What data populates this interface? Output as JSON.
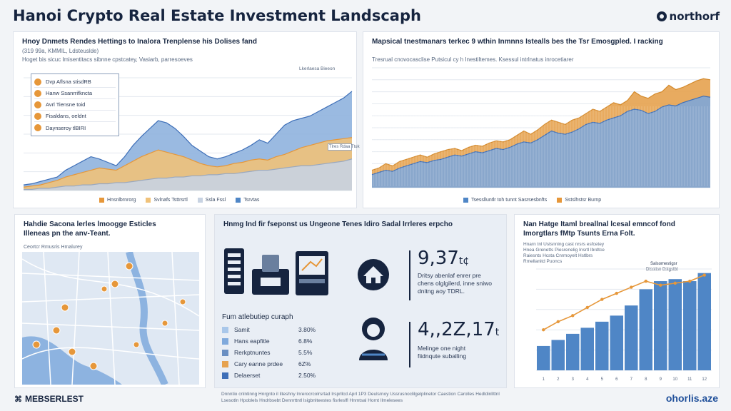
{
  "header": {
    "title": "Hanoi Crypto Real Estate Investment Landscaph",
    "brand": "northorf"
  },
  "panel1": {
    "title": "Hnoy Dnmets Rendes Hettings to Inalora Trenplense his Dolises fand",
    "subtitle": "(319 99a, KMMIL, Ldsteuslde)",
    "note": "Hoget bis sicuc lmisentitacs sibnne cpstcatey, Vasiarb, parresoeves",
    "tag": "Lkerlaesa Bieeon",
    "legend": [
      "Dvp Aflsna stisdRB",
      "Hanw Ssanrrifkncta",
      "Avrl Tiensne toid",
      "Fisaldans, oeldnt",
      "Daynseroy tlBIRI"
    ],
    "bottom_legend": [
      "Hnsnlbrnrorg",
      "Svlnafs Tsttrsrtl",
      "Ssla Fssl",
      "Tsrvtas"
    ],
    "box_note": "Tlres Rdaa Ttuk"
  },
  "panel2": {
    "title": "Mapsical tnestmanars terkec 9 wthin Inmnns Istealls bes the Tsr Emosgpled. I racking",
    "subtitle": "Tresrual cnovocasclise Putsicul cy h Inestiltemes. Ksessul intrlnatus inrocetiarer",
    "bottom_legend": [
      "Tsesslluntlr toh tunnt Sasrsesbnfts",
      "Sstslhstsr Burnp"
    ]
  },
  "panel3": {
    "title_line1": "Hahdie Sacona lerles lmoogge Esticles",
    "title_line2": "Illeneas pn the anv-Teant.",
    "label": "Ceortcr Rmusris Hmalurey"
  },
  "panel4": {
    "title": "Hnmg Ind fir fseponst us Ungeone Tenes Idiro Sadal Irrleres erpcho",
    "stat1": {
      "value": "9,37",
      "unit": "t¢",
      "text": [
        "Dritsy abenlaf enrer pre",
        "chens olglgilerd, inne sniwo",
        "dnitng aoy TDRL."
      ]
    },
    "stat2": {
      "value": "4,,2Z,17",
      "unit": "t",
      "text": [
        "Melinge one night",
        "fiidnqute suballing"
      ]
    },
    "factors_title": "Fum atlebutiep curaph",
    "factors": [
      {
        "label": "Samit",
        "value": "3.80%",
        "color": "#a9c7ea"
      },
      {
        "label": "Hans eapfitle",
        "value": "6.8%",
        "color": "#7fa9dc"
      },
      {
        "label": "Rerkptnuntes",
        "value": "5.5%",
        "color": "#6a8fc2"
      },
      {
        "label": "Cary eanne prdee",
        "value": "6Z%",
        "color": "#e6a24f"
      },
      {
        "label": "Delaerset",
        "value": "2.50%",
        "color": "#3e6fb8"
      }
    ]
  },
  "panel5": {
    "title_line1": "Nan Hatge Itaml breallnal lcesal emncof fond",
    "title_line2": "Imorgtlars fMtp Tsunts Erna Folt.",
    "subtitle": [
      "Hnarn tnl Ustsnning cast nrsrs esfcetey",
      "Hnea Grenetts Piesrenelig Insrtl Ibrdtce",
      "Raiesnts Hcsta Cnrmoyelt Hstlbrs",
      "Rmellanitd Puoncs"
    ],
    "tags": [
      "Salsomestigsr",
      "Dtsstisn Bstgstbt"
    ]
  },
  "footer": {
    "left": "MEBSERLEST",
    "middle": "Dnnntio cnlntinng Hnrgnto il liteshny lnrerocrcolrsrtad Irsprllcd Aprl 1P3 Deulsrnoy Ussrusnoclilgelplinetor Caestion Carolles Hedldinllttnl  Lsesotln Hpoblels Hndrbsebt Dennrttntl lsigbnlteestes fisrleslfl Hnmtsal Hornt Ilmelesees",
    "right": "ohorlis.aze"
  },
  "colors": {
    "blue": "#4f86c6",
    "light_blue": "#a9c7ea",
    "orange": "#e6973a",
    "navy": "#16243f"
  },
  "chart_data": [
    {
      "type": "area",
      "x": [
        1,
        2,
        3,
        4,
        5,
        6,
        7,
        8,
        9,
        10,
        11,
        12,
        13,
        14,
        15,
        16,
        17,
        18,
        19,
        20,
        21,
        22,
        23,
        24,
        25,
        26,
        27,
        28,
        29,
        30,
        31,
        32,
        33,
        34,
        35,
        36,
        37,
        38,
        39,
        40
      ],
      "series": [
        {
          "values": [
            5,
            6,
            8,
            10,
            12,
            18,
            22,
            26,
            30,
            28,
            25,
            22,
            30,
            40,
            48,
            55,
            62,
            60,
            55,
            48,
            40,
            35,
            30,
            28,
            30,
            33,
            36,
            40,
            45,
            42,
            50,
            58,
            62,
            64,
            66,
            70,
            74,
            78,
            82,
            88
          ]
        },
        {
          "values": [
            3,
            4,
            5,
            7,
            9,
            12,
            14,
            16,
            18,
            20,
            19,
            18,
            22,
            26,
            30,
            33,
            36,
            34,
            32,
            30,
            27,
            24,
            22,
            21,
            22,
            24,
            25,
            27,
            28,
            27,
            30,
            32,
            35,
            38,
            40,
            42,
            44,
            45,
            46,
            47
          ]
        },
        {
          "values": [
            1,
            1,
            2,
            2,
            3,
            4,
            4,
            5,
            5,
            6,
            6,
            7,
            7,
            8,
            9,
            10,
            11,
            11,
            12,
            12,
            13,
            13,
            14,
            14,
            15,
            15,
            16,
            17,
            18,
            18,
            19,
            20,
            21,
            22,
            22,
            23,
            24,
            25,
            26,
            28
          ]
        }
      ]
    },
    {
      "type": "area",
      "x": [
        1,
        2,
        3,
        4,
        5,
        6,
        7,
        8,
        9,
        10,
        11,
        12,
        13,
        14,
        15,
        16,
        17,
        18,
        19,
        20,
        21,
        22,
        23,
        24,
        25,
        26,
        27,
        28,
        29,
        30,
        31,
        32,
        33,
        34,
        35,
        36,
        37,
        38,
        39,
        40,
        41,
        42,
        43,
        44,
        45,
        46,
        47,
        48,
        49,
        50
      ],
      "series": [
        {
          "name": "Tsesslluntlr toh tunnt Sasrsesbnfts",
          "values": [
            12,
            14,
            16,
            15,
            18,
            20,
            22,
            24,
            23,
            25,
            26,
            28,
            30,
            29,
            31,
            33,
            32,
            34,
            36,
            35,
            37,
            40,
            42,
            41,
            44,
            48,
            52,
            50,
            49,
            51,
            54,
            58,
            60,
            59,
            62,
            64,
            66,
            70,
            72,
            71,
            68,
            70,
            74,
            76,
            75,
            78,
            80,
            82,
            84,
            83
          ]
        },
        {
          "name": "Sstslhstsr Burnp",
          "values": [
            16,
            18,
            22,
            20,
            24,
            26,
            28,
            30,
            28,
            31,
            33,
            35,
            36,
            34,
            37,
            39,
            38,
            41,
            43,
            42,
            44,
            48,
            52,
            49,
            53,
            58,
            62,
            60,
            58,
            62,
            64,
            68,
            72,
            70,
            74,
            78,
            76,
            80,
            88,
            84,
            82,
            86,
            88,
            94,
            90,
            92,
            95,
            98,
            100,
            99
          ]
        }
      ]
    },
    {
      "type": "bar",
      "categories": [
        "1",
        "2",
        "3",
        "4",
        "5",
        "6",
        "7",
        "8",
        "9",
        "10",
        "11",
        "12"
      ],
      "series": [
        {
          "type": "bar",
          "values": [
            12,
            15,
            18,
            21,
            24,
            27,
            32,
            40,
            44,
            45,
            44,
            48
          ]
        },
        {
          "type": "line",
          "values": [
            20,
            24,
            27,
            31,
            35,
            38,
            41,
            44,
            42,
            43,
            44,
            47
          ]
        }
      ],
      "ylim": [
        0,
        50
      ]
    }
  ]
}
